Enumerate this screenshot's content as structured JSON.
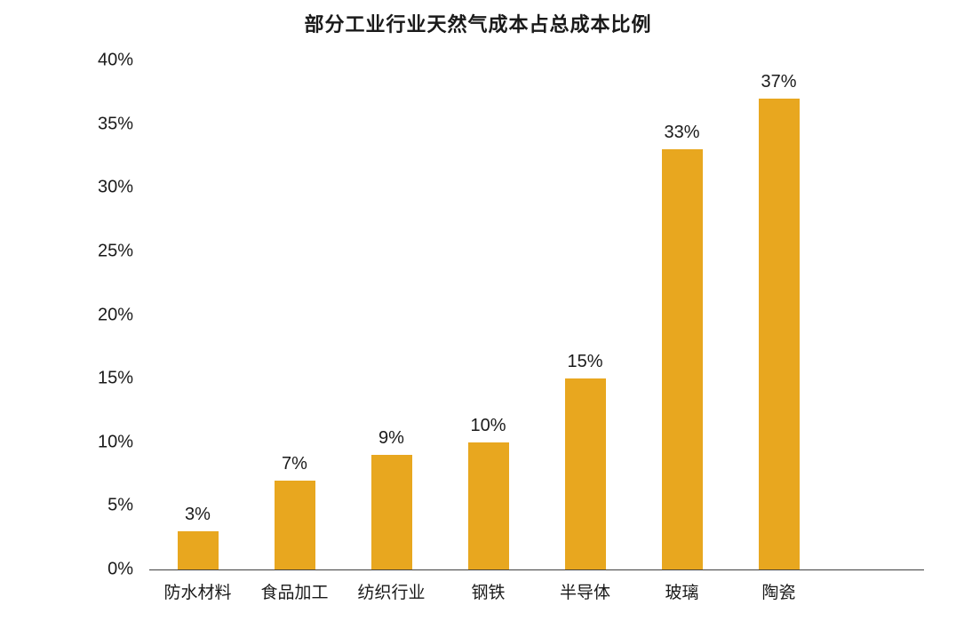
{
  "chart_data": {
    "type": "bar",
    "title": "部分工业行业天然气成本占总成本比例",
    "categories": [
      "防水材料",
      "食品加工",
      "纺织行业",
      "钢铁",
      "半导体",
      "玻璃",
      "陶瓷"
    ],
    "values": [
      3,
      7,
      9,
      10,
      15,
      33,
      37
    ],
    "labels": [
      "3%",
      "7%",
      "9%",
      "10%",
      "15%",
      "33%",
      "37%"
    ],
    "xlabel": "",
    "ylabel": "",
    "ylim": [
      0,
      40
    ],
    "yticks": [
      "40%",
      "35%",
      "30%",
      "25%",
      "20%",
      "15%",
      "10%",
      "5%",
      "0%"
    ],
    "bar_color": "#E8A71F",
    "text_color": "#1a1a1a",
    "axis_line_color": "#404040",
    "grid": false,
    "legend": false
  }
}
